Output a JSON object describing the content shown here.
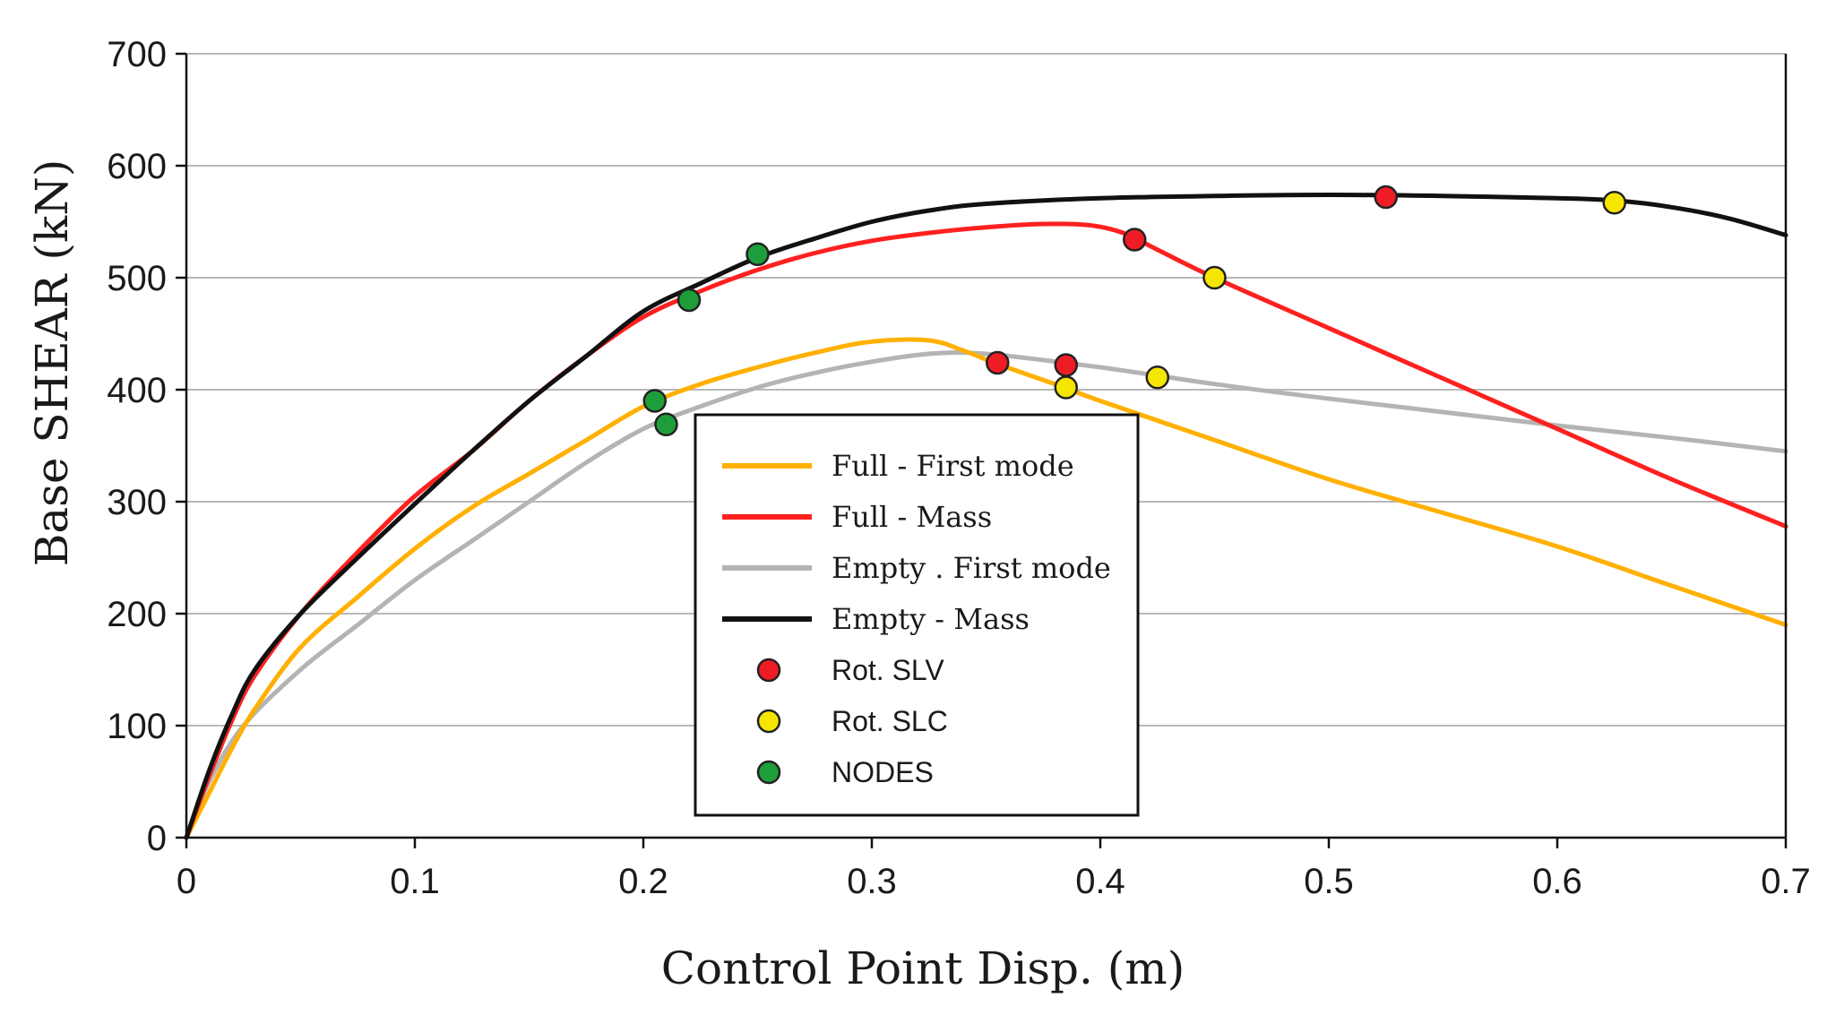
{
  "chart_data": {
    "type": "line",
    "xlabel": "Control Point Disp. (m)",
    "ylabel": "Base SHEAR (kN)",
    "xlim": [
      0,
      0.7
    ],
    "ylim": [
      0,
      700
    ],
    "x_ticks": [
      0,
      0.1,
      0.2,
      0.3,
      0.4,
      0.5,
      0.6,
      0.7
    ],
    "x_tick_labels": [
      "0",
      "0.1",
      "0.2",
      "0.3",
      "0.4",
      "0.5",
      "0.6",
      "0.7"
    ],
    "y_ticks": [
      0,
      100,
      200,
      300,
      400,
      500,
      600,
      700
    ],
    "y_tick_labels": [
      "0",
      "100",
      "200",
      "300",
      "400",
      "500",
      "600",
      "700"
    ],
    "grid": "horizontal",
    "legend_position": "center",
    "colors": {
      "full_first_mode": "#ffb000",
      "full_mass": "#ff2020",
      "empty_first_mode": "#b4b4b4",
      "empty_mass": "#111111",
      "rot_slv": "#ee1c24",
      "rot_slc": "#f5e600",
      "nodes": "#1e9e3a",
      "grid": "#b8b8b8"
    },
    "series": [
      {
        "name": "Full - First mode",
        "key": "full_first_mode",
        "points": [
          [
            0,
            0
          ],
          [
            0.01,
            40
          ],
          [
            0.02,
            80
          ],
          [
            0.03,
            115
          ],
          [
            0.05,
            170
          ],
          [
            0.075,
            215
          ],
          [
            0.1,
            258
          ],
          [
            0.125,
            295
          ],
          [
            0.15,
            325
          ],
          [
            0.175,
            355
          ],
          [
            0.2,
            385
          ],
          [
            0.225,
            405
          ],
          [
            0.25,
            420
          ],
          [
            0.275,
            433
          ],
          [
            0.3,
            443
          ],
          [
            0.325,
            444
          ],
          [
            0.34,
            435
          ],
          [
            0.355,
            423
          ],
          [
            0.38,
            405
          ],
          [
            0.4,
            390
          ],
          [
            0.45,
            355
          ],
          [
            0.5,
            320
          ],
          [
            0.55,
            290
          ],
          [
            0.6,
            260
          ],
          [
            0.65,
            225
          ],
          [
            0.7,
            190
          ]
        ]
      },
      {
        "name": "Full - Mass",
        "key": "full_mass",
        "points": [
          [
            0,
            0
          ],
          [
            0.01,
            55
          ],
          [
            0.02,
            105
          ],
          [
            0.03,
            145
          ],
          [
            0.05,
            200
          ],
          [
            0.075,
            255
          ],
          [
            0.1,
            305
          ],
          [
            0.125,
            345
          ],
          [
            0.15,
            390
          ],
          [
            0.175,
            430
          ],
          [
            0.2,
            465
          ],
          [
            0.225,
            488
          ],
          [
            0.25,
            507
          ],
          [
            0.275,
            522
          ],
          [
            0.3,
            533
          ],
          [
            0.325,
            540
          ],
          [
            0.35,
            545
          ],
          [
            0.375,
            548
          ],
          [
            0.395,
            547
          ],
          [
            0.41,
            540
          ],
          [
            0.425,
            525
          ],
          [
            0.45,
            500
          ],
          [
            0.5,
            455
          ],
          [
            0.55,
            410
          ],
          [
            0.6,
            365
          ],
          [
            0.65,
            320
          ],
          [
            0.7,
            278
          ]
        ]
      },
      {
        "name": "Empty . First mode",
        "key": "empty_first_mode",
        "points": [
          [
            0,
            0
          ],
          [
            0.01,
            50
          ],
          [
            0.025,
            100
          ],
          [
            0.05,
            150
          ],
          [
            0.075,
            190
          ],
          [
            0.1,
            230
          ],
          [
            0.125,
            265
          ],
          [
            0.15,
            300
          ],
          [
            0.175,
            335
          ],
          [
            0.2,
            365
          ],
          [
            0.225,
            385
          ],
          [
            0.25,
            402
          ],
          [
            0.275,
            415
          ],
          [
            0.3,
            425
          ],
          [
            0.325,
            432
          ],
          [
            0.35,
            432
          ],
          [
            0.4,
            420
          ],
          [
            0.45,
            405
          ],
          [
            0.5,
            392
          ],
          [
            0.55,
            380
          ],
          [
            0.6,
            368
          ],
          [
            0.65,
            357
          ],
          [
            0.7,
            345
          ]
        ]
      },
      {
        "name": "Empty - Mass",
        "key": "empty_mass",
        "points": [
          [
            0,
            0
          ],
          [
            0.01,
            60
          ],
          [
            0.02,
            110
          ],
          [
            0.03,
            150
          ],
          [
            0.05,
            200
          ],
          [
            0.075,
            250
          ],
          [
            0.1,
            298
          ],
          [
            0.125,
            345
          ],
          [
            0.15,
            390
          ],
          [
            0.175,
            430
          ],
          [
            0.2,
            470
          ],
          [
            0.225,
            495
          ],
          [
            0.25,
            518
          ],
          [
            0.275,
            535
          ],
          [
            0.3,
            550
          ],
          [
            0.325,
            560
          ],
          [
            0.35,
            566
          ],
          [
            0.4,
            571
          ],
          [
            0.45,
            573
          ],
          [
            0.5,
            574
          ],
          [
            0.55,
            573
          ],
          [
            0.6,
            571
          ],
          [
            0.625,
            569
          ],
          [
            0.65,
            563
          ],
          [
            0.675,
            553
          ],
          [
            0.7,
            538
          ]
        ]
      }
    ],
    "markers": [
      {
        "name": "Rot. SLV",
        "key": "rot_slv",
        "points": [
          [
            0.355,
            424
          ],
          [
            0.385,
            422
          ],
          [
            0.415,
            534
          ],
          [
            0.525,
            572
          ]
        ]
      },
      {
        "name": "Rot. SLC",
        "key": "rot_slc",
        "points": [
          [
            0.385,
            402
          ],
          [
            0.425,
            411
          ],
          [
            0.45,
            500
          ],
          [
            0.625,
            567
          ]
        ]
      },
      {
        "name": "NODES",
        "key": "nodes",
        "points": [
          [
            0.205,
            390
          ],
          [
            0.21,
            369
          ],
          [
            0.22,
            480
          ],
          [
            0.25,
            521
          ]
        ]
      }
    ],
    "legend": [
      {
        "label": "Full - First mode",
        "kind": "line",
        "key": "full_first_mode",
        "font": "serif"
      },
      {
        "label": "Full - Mass",
        "kind": "line",
        "key": "full_mass",
        "font": "serif"
      },
      {
        "label": "Empty . First mode",
        "kind": "line",
        "key": "empty_first_mode",
        "font": "serif"
      },
      {
        "label": "Empty - Mass",
        "kind": "line",
        "key": "empty_mass",
        "font": "serif"
      },
      {
        "label": "Rot. SLV",
        "kind": "marker",
        "key": "rot_slv",
        "font": "sans"
      },
      {
        "label": "Rot. SLC",
        "kind": "marker",
        "key": "rot_slc",
        "font": "sans"
      },
      {
        "label": "NODES",
        "kind": "marker",
        "key": "nodes",
        "font": "sans"
      }
    ]
  }
}
